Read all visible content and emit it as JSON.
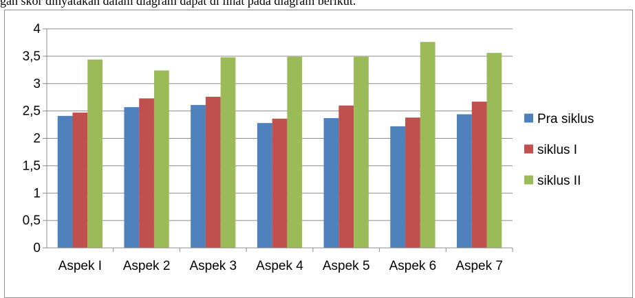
{
  "header_text": "gan skor dinyatakan dalam diagram dapat di lihat pada diagram berikut.",
  "chart_data": {
    "type": "bar",
    "categories": [
      "Aspek I",
      "Aspek 2",
      "Aspek 3",
      "Aspek 4",
      "Aspek 5",
      "Aspek 6",
      "Aspek 7"
    ],
    "series": [
      {
        "name": "Pra siklus",
        "color": "#4f81bd",
        "values": [
          2.41,
          2.57,
          2.61,
          2.28,
          2.37,
          2.22,
          2.44
        ]
      },
      {
        "name": "siklus I",
        "color": "#c0504d",
        "values": [
          2.47,
          2.73,
          2.76,
          2.36,
          2.6,
          2.38,
          2.67
        ]
      },
      {
        "name": "siklus II",
        "color": "#9bbb59",
        "values": [
          3.44,
          3.24,
          3.48,
          3.49,
          3.49,
          3.76,
          3.56
        ]
      }
    ],
    "yticks": [
      "0",
      "0,5",
      "1",
      "1,5",
      "2",
      "2,5",
      "3",
      "3,5",
      "4"
    ],
    "ylim": [
      0,
      4
    ],
    "grid": true,
    "legend_position": "right"
  }
}
